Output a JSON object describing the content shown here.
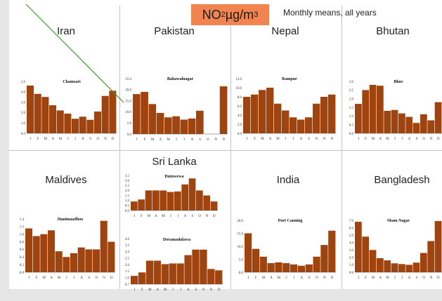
{
  "header": {
    "title_main": "NO",
    "title_sub": "2",
    "title_unit": " µg/m",
    "title_sup": "3",
    "subtitle": "Monthly means, all years"
  },
  "countries": [
    "Iran",
    "Pakistan",
    "Nepal",
    "Bhutan",
    "Maldives",
    "Sri Lanka",
    "India",
    "Bangladesh"
  ],
  "colors": {
    "bar": "#a0440f",
    "title_box": "#f2854f",
    "diagonal_line": "#3a9a2a"
  },
  "chart_data": [
    {
      "type": "bar",
      "country": "Iran",
      "title": "Chamsari",
      "categories": [
        "J",
        "F",
        "M",
        "A",
        "M",
        "J",
        "J",
        "A",
        "S",
        "O",
        "N",
        "D"
      ],
      "values": [
        4.6,
        3.8,
        3.5,
        2.7,
        2.2,
        1.9,
        1.4,
        1.6,
        1.3,
        2.1,
        3.6,
        4.1
      ],
      "ylim": [
        0,
        5
      ],
      "yticks": [
        "0.0",
        "1.0",
        "2.0",
        "3.0",
        "4.0",
        "5.0"
      ]
    },
    {
      "type": "bar",
      "country": "Pakistan",
      "title": "Bahawalnagar",
      "categories": [
        "J",
        "F",
        "M",
        "A",
        "M",
        "J",
        "J",
        "A",
        "S",
        "O",
        "N",
        "D"
      ],
      "values": [
        18,
        19,
        13.5,
        9.5,
        7.5,
        8,
        6.5,
        7,
        10.5,
        0,
        0,
        21.5
      ],
      "ylim": [
        0,
        25
      ],
      "yticks": [
        "0.0",
        "5.0",
        "10.0",
        "15.0",
        "20.0",
        "25.0"
      ]
    },
    {
      "type": "bar",
      "country": "Nepal",
      "title": "Rampur",
      "categories": [
        "J",
        "F",
        "M",
        "A",
        "M",
        "J",
        "J",
        "A",
        "S",
        "O",
        "N",
        "D"
      ],
      "values": [
        8,
        8.5,
        9.5,
        10,
        6.5,
        5,
        3.5,
        3,
        3.5,
        6.5,
        8,
        8.5
      ],
      "ylim": [
        0,
        12
      ],
      "yticks": [
        "0.0",
        "2.0",
        "4.0",
        "6.0",
        "8.0",
        "10.0",
        "12.0"
      ]
    },
    {
      "type": "bar",
      "country": "Bhutan",
      "title": "Bhur",
      "categories": [
        "J",
        "F",
        "M",
        "A",
        "M",
        "J",
        "J",
        "A",
        "S",
        "O",
        "N",
        "D"
      ],
      "values": [
        1.7,
        2.5,
        2.8,
        2.75,
        1.3,
        1.35,
        1.15,
        0.95,
        0.6,
        1.1,
        0.75,
        1.8
      ],
      "ylim": [
        0,
        3
      ],
      "yticks": [
        "0.0",
        "0.5",
        "1.0",
        "1.5",
        "2.0",
        "2.5",
        "3.0"
      ]
    },
    {
      "type": "bar",
      "country": "Maldives",
      "title": "Hanimaadhoo",
      "categories": [
        "J",
        "F",
        "M",
        "A",
        "M",
        "J",
        "J",
        "A",
        "S",
        "O",
        "N",
        "D"
      ],
      "values": [
        1.15,
        0.95,
        1.0,
        1.1,
        0.55,
        0.4,
        0.5,
        0.65,
        0.6,
        0.6,
        1.35,
        0.8
      ],
      "ylim": [
        0,
        1.4
      ],
      "yticks": [
        "0.0",
        "0.2",
        "0.4",
        "0.6",
        "0.8",
        "1.0",
        "1.2",
        "1.4"
      ]
    },
    {
      "type": "bar",
      "country": "Sri Lanka",
      "title": "Dutuwewa",
      "categories": [
        "J",
        "F",
        "M",
        "A",
        "M",
        "J",
        "J",
        "A",
        "S",
        "O",
        "N",
        "D"
      ],
      "values": [
        0.9,
        1.1,
        2.0,
        2.0,
        2.0,
        1.85,
        1.9,
        2.6,
        3.2,
        2.0,
        1.5,
        0.9
      ],
      "ylim": [
        0,
        3.5
      ],
      "yticks": [
        "0.0",
        "0.5",
        "1.0",
        "1.5",
        "2.0",
        "2.5",
        "3.0",
        "3.5"
      ]
    },
    {
      "type": "bar",
      "country": "Sri Lanka",
      "title": "Doramadalawa",
      "categories": [
        "J",
        "F",
        "M",
        "A",
        "M",
        "J",
        "J",
        "A",
        "S",
        "O",
        "N",
        "D"
      ],
      "values": [
        1.3,
        1.55,
        2.4,
        2.4,
        2.15,
        2.2,
        2.2,
        2.8,
        3.2,
        3.2,
        1.8,
        1.7
      ],
      "ylim": [
        0.7,
        4
      ],
      "yticks": [
        "0.7",
        "1.0",
        "1.5",
        "2.0",
        "2.5",
        "3.0",
        "3.5",
        "4.0"
      ]
    },
    {
      "type": "bar",
      "country": "India",
      "title": "Port Canning",
      "categories": [
        "J",
        "F",
        "M",
        "A",
        "M",
        "J",
        "J",
        "A",
        "S",
        "O",
        "N",
        "D"
      ],
      "values": [
        15,
        9,
        6,
        3.5,
        3.8,
        3.5,
        3,
        2.5,
        3,
        6,
        10.5,
        16
      ],
      "ylim": [
        0,
        20
      ],
      "yticks": [
        "0.0",
        "5.0",
        "10.0",
        "15.0",
        "20.0"
      ]
    },
    {
      "type": "bar",
      "country": "Bangladesh",
      "title": "Sham Nagar",
      "categories": [
        "J",
        "F",
        "M",
        "A",
        "M",
        "J",
        "J",
        "A",
        "S",
        "O",
        "N",
        "D"
      ],
      "values": [
        6.8,
        4.8,
        3.0,
        1.9,
        1.6,
        1.2,
        1.1,
        1.0,
        1.3,
        2.6,
        4.2,
        6.9
      ],
      "ylim": [
        0,
        7
      ],
      "yticks": [
        "0.0",
        "1.0",
        "2.0",
        "3.0",
        "4.0",
        "5.0",
        "6.0",
        "7.0"
      ]
    }
  ]
}
